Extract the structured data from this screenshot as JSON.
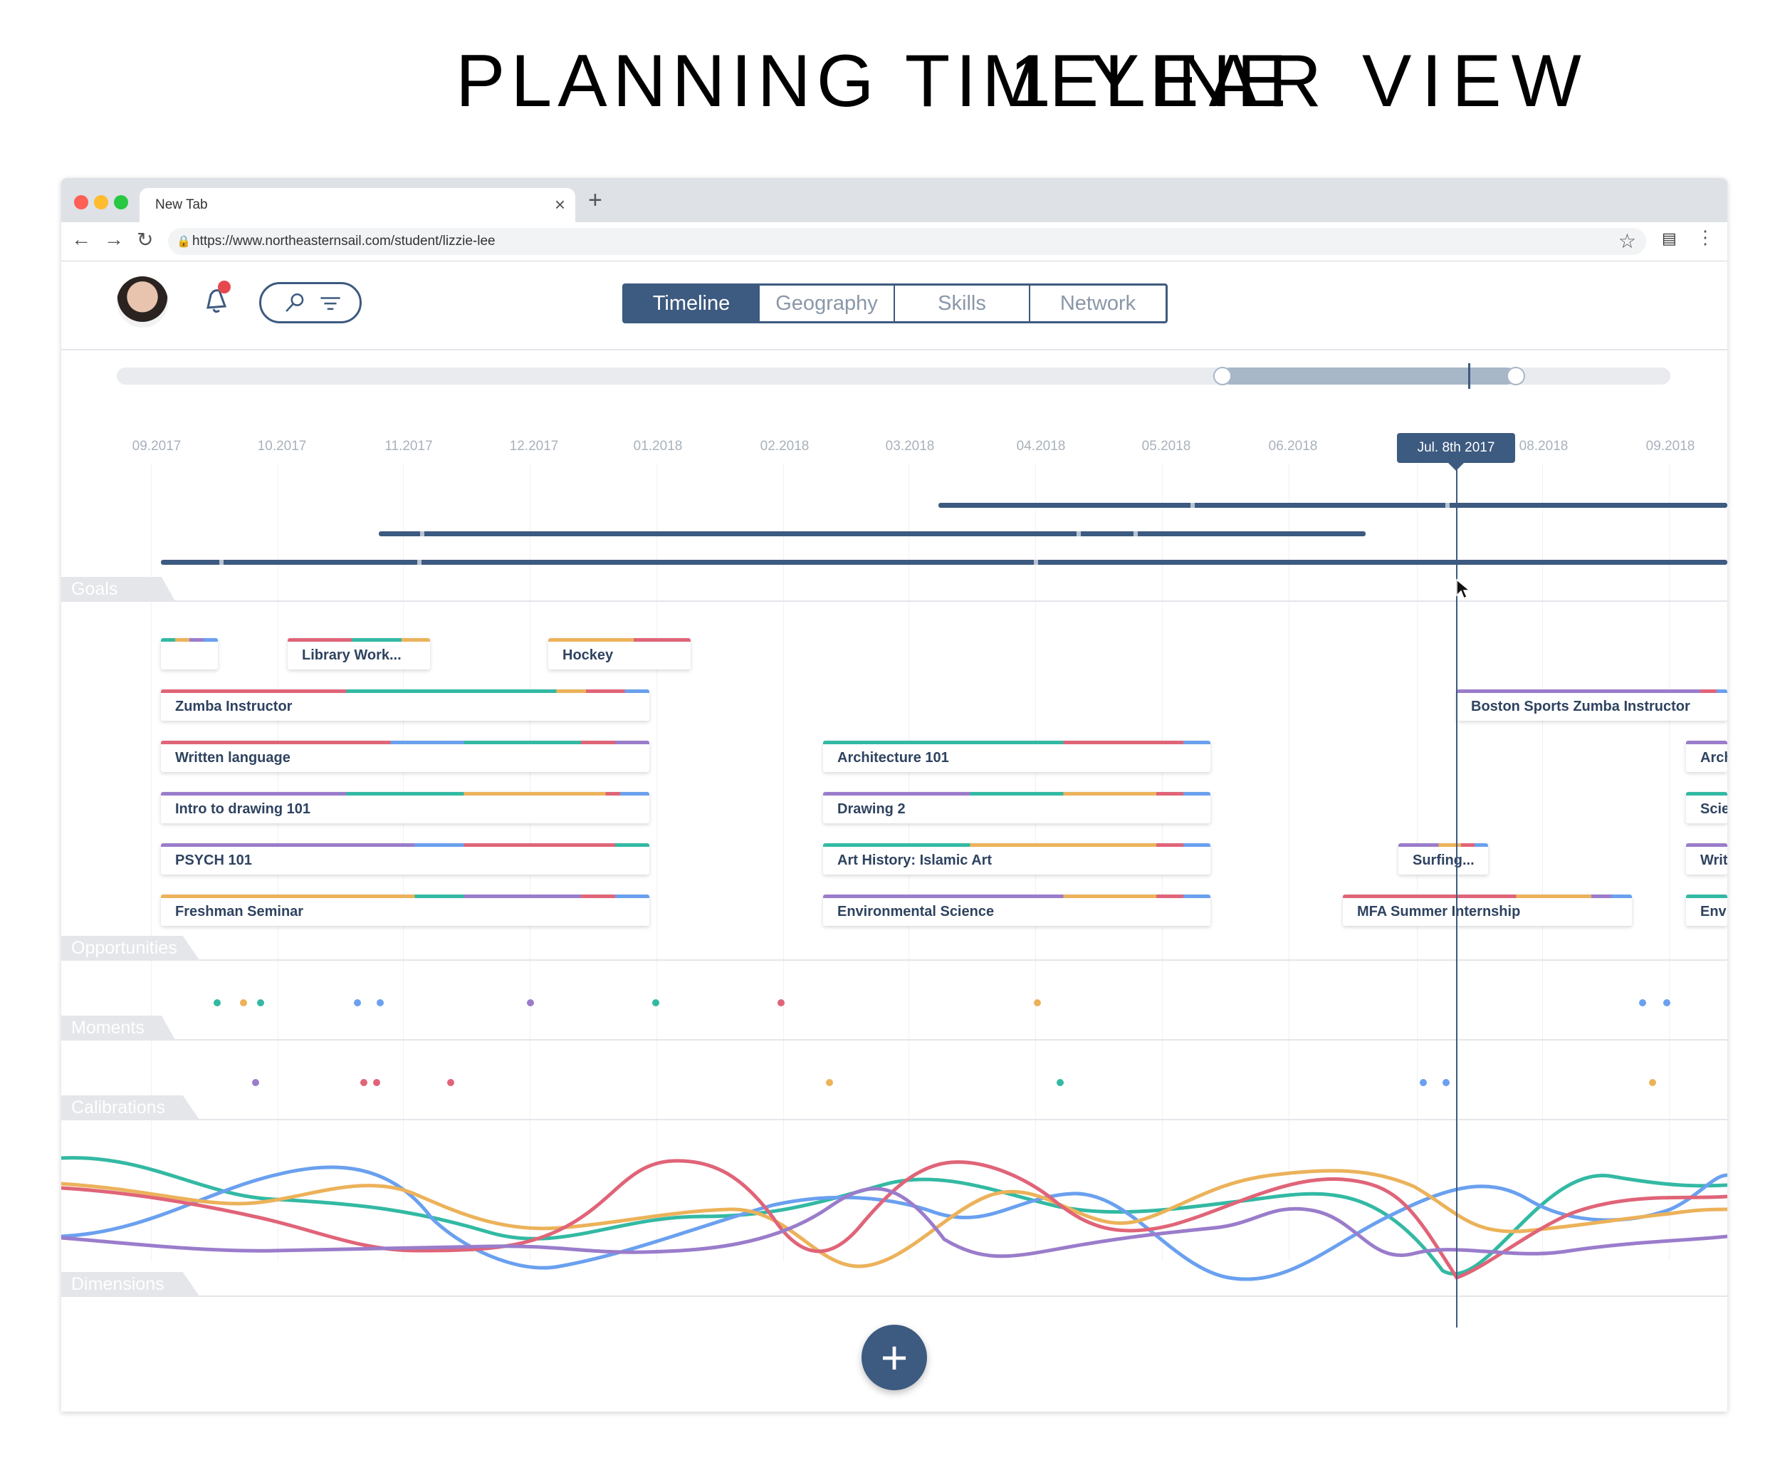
{
  "page_title": {
    "bold": "PLANNING TIMELINE",
    "light": "1 YEAR VIEW"
  },
  "browser": {
    "tab_title": "New Tab",
    "url": "https://www.northeasternsail.com/student/lizzie-lee"
  },
  "view_tabs": [
    {
      "label": "Timeline",
      "active": true
    },
    {
      "label": "Geography",
      "active": false
    },
    {
      "label": "Skills",
      "active": false
    },
    {
      "label": "Network",
      "active": false
    }
  ],
  "months": [
    "09.2017",
    "10.2017",
    "11.2017",
    "12.2017",
    "01.2018",
    "02.2018",
    "03.2018",
    "04.2018",
    "05.2018",
    "06.2018",
    "08.2018",
    "09.2018"
  ],
  "date_tooltip": "Jul. 8th 2017",
  "sections": {
    "goals": "Goals",
    "opportunities": "Opportunities",
    "moments": "Moments",
    "calibrations": "Calibrations",
    "dimensions": "Dimensions"
  },
  "cards": [
    {
      "label": ""
    },
    {
      "label": "Library Work..."
    },
    {
      "label": "Hockey"
    },
    {
      "label": "Zumba Instructor"
    },
    {
      "label": "Written language"
    },
    {
      "label": "Intro to drawing 101"
    },
    {
      "label": "PSYCH 101"
    },
    {
      "label": "Freshman Seminar"
    },
    {
      "label": "Architecture 101"
    },
    {
      "label": "Drawing 2"
    },
    {
      "label": "Art History: Islamic Art"
    },
    {
      "label": "Environmental Science"
    },
    {
      "label": "Boston Sports Zumba Instructor"
    },
    {
      "label": "Surfing..."
    },
    {
      "label": "MFA Summer Internship"
    },
    {
      "label": "Arch"
    },
    {
      "label": "Scie"
    },
    {
      "label": "Writ"
    },
    {
      "label": "Env"
    }
  ],
  "colors": {
    "primary": "#3d5a80",
    "red": "#e06478",
    "teal": "#33b9a3",
    "blue": "#6aa0ef",
    "orange": "#ecb25a",
    "purple": "#9a7ccb"
  },
  "icons": [
    "bell-icon",
    "search-icon",
    "filter-icon",
    "plus-icon",
    "back-icon",
    "forward-icon",
    "reload-icon",
    "lock-icon",
    "star-icon",
    "menu-icon"
  ]
}
